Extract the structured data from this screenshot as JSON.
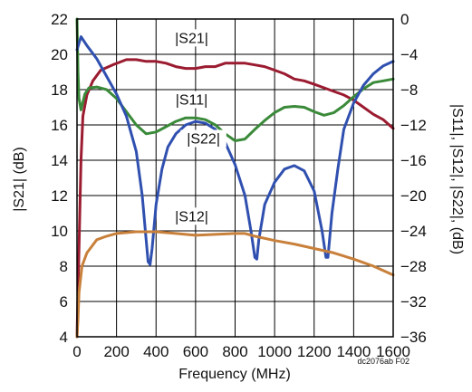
{
  "chart_data": {
    "type": "line",
    "xlabel": "Frequency (MHz)",
    "ylabel_left": "|S21| (dB)",
    "ylabel_right": "|S11|, |S12|, |S22|, (dB)",
    "xlim": [
      0,
      1600
    ],
    "ylim_left": [
      4,
      22
    ],
    "ylim_right": [
      -36,
      0
    ],
    "grid": true,
    "x_ticks": [
      0,
      200,
      400,
      600,
      800,
      1000,
      1200,
      1400,
      1600
    ],
    "y_ticks_left": [
      4,
      6,
      8,
      10,
      12,
      14,
      16,
      18,
      20,
      22
    ],
    "y_ticks_right": [
      -36,
      -32,
      -28,
      -24,
      -20,
      -16,
      -12,
      -8,
      -4,
      0
    ],
    "footnote": "dc2076ab F02",
    "series": [
      {
        "name": "|S21|",
        "axis": "left",
        "color": "#9b1b30",
        "label_at": [
          580,
          20.7
        ],
        "points": [
          [
            0,
            4
          ],
          [
            10,
            9
          ],
          [
            20,
            14
          ],
          [
            30,
            16.5
          ],
          [
            50,
            17.7
          ],
          [
            80,
            18.5
          ],
          [
            120,
            19.1
          ],
          [
            180,
            19.4
          ],
          [
            250,
            19.7
          ],
          [
            300,
            19.7
          ],
          [
            350,
            19.6
          ],
          [
            400,
            19.6
          ],
          [
            450,
            19.5
          ],
          [
            500,
            19.3
          ],
          [
            550,
            19.2
          ],
          [
            600,
            19.2
          ],
          [
            650,
            19.3
          ],
          [
            700,
            19.3
          ],
          [
            750,
            19.5
          ],
          [
            800,
            19.5
          ],
          [
            850,
            19.5
          ],
          [
            900,
            19.4
          ],
          [
            950,
            19.3
          ],
          [
            1000,
            19.1
          ],
          [
            1050,
            18.9
          ],
          [
            1100,
            18.6
          ],
          [
            1150,
            18.5
          ],
          [
            1200,
            18.3
          ],
          [
            1250,
            18.1
          ],
          [
            1300,
            17.9
          ],
          [
            1350,
            17.7
          ],
          [
            1400,
            17.4
          ],
          [
            1450,
            17.0
          ],
          [
            1500,
            16.6
          ],
          [
            1550,
            16.3
          ],
          [
            1600,
            15.8
          ]
        ]
      },
      {
        "name": "|S11|",
        "axis": "right",
        "color": "#3a8a3a",
        "label_at": [
          580,
          17.2
        ],
        "points": [
          [
            0,
            0
          ],
          [
            5,
            -6
          ],
          [
            10,
            -9
          ],
          [
            20,
            -10.3
          ],
          [
            40,
            -8.5
          ],
          [
            60,
            -7.8
          ],
          [
            100,
            -7.7
          ],
          [
            150,
            -8
          ],
          [
            200,
            -9
          ],
          [
            250,
            -10.5
          ],
          [
            300,
            -12
          ],
          [
            350,
            -13
          ],
          [
            400,
            -12.8
          ],
          [
            450,
            -12.2
          ],
          [
            500,
            -11.6
          ],
          [
            550,
            -11.2
          ],
          [
            600,
            -11.2
          ],
          [
            650,
            -11.4
          ],
          [
            700,
            -12
          ],
          [
            750,
            -13
          ],
          [
            800,
            -13.8
          ],
          [
            850,
            -13.6
          ],
          [
            900,
            -12.5
          ],
          [
            950,
            -11.5
          ],
          [
            1000,
            -10.6
          ],
          [
            1050,
            -10
          ],
          [
            1100,
            -9.9
          ],
          [
            1150,
            -10
          ],
          [
            1200,
            -10.5
          ],
          [
            1250,
            -10.9
          ],
          [
            1300,
            -10.6
          ],
          [
            1350,
            -9.8
          ],
          [
            1400,
            -8.8
          ],
          [
            1450,
            -7.9
          ],
          [
            1500,
            -7.2
          ],
          [
            1550,
            -7
          ],
          [
            1600,
            -6.8
          ]
        ]
      },
      {
        "name": "|S22|",
        "axis": "right",
        "color": "#3050b0",
        "label_at": [
          640,
          15.0
        ],
        "points": [
          [
            0,
            -3.5
          ],
          [
            20,
            -2
          ],
          [
            50,
            -3
          ],
          [
            100,
            -4.5
          ],
          [
            150,
            -6.5
          ],
          [
            200,
            -8.5
          ],
          [
            250,
            -11
          ],
          [
            300,
            -15
          ],
          [
            330,
            -20
          ],
          [
            350,
            -25
          ],
          [
            360,
            -27.5
          ],
          [
            370,
            -27.8
          ],
          [
            380,
            -26
          ],
          [
            400,
            -21
          ],
          [
            430,
            -17
          ],
          [
            460,
            -14.5
          ],
          [
            500,
            -13
          ],
          [
            550,
            -12
          ],
          [
            600,
            -11.6
          ],
          [
            650,
            -11.8
          ],
          [
            700,
            -12.5
          ],
          [
            750,
            -14
          ],
          [
            800,
            -16.5
          ],
          [
            850,
            -20
          ],
          [
            880,
            -24
          ],
          [
            900,
            -27
          ],
          [
            910,
            -27.2
          ],
          [
            920,
            -25
          ],
          [
            950,
            -21
          ],
          [
            1000,
            -18.5
          ],
          [
            1050,
            -17
          ],
          [
            1100,
            -16.6
          ],
          [
            1150,
            -17.2
          ],
          [
            1200,
            -19.5
          ],
          [
            1240,
            -24
          ],
          [
            1260,
            -27
          ],
          [
            1270,
            -27
          ],
          [
            1290,
            -22
          ],
          [
            1320,
            -17
          ],
          [
            1350,
            -12.5
          ],
          [
            1400,
            -9.5
          ],
          [
            1450,
            -7.5
          ],
          [
            1500,
            -6.2
          ],
          [
            1550,
            -5.3
          ],
          [
            1600,
            -4.8
          ]
        ]
      },
      {
        "name": "|S12|",
        "axis": "right",
        "color": "#c8803a",
        "label_at": [
          580,
          10.6
        ],
        "points": [
          [
            0,
            -36
          ],
          [
            5,
            -34
          ],
          [
            10,
            -31
          ],
          [
            25,
            -28
          ],
          [
            50,
            -26.5
          ],
          [
            100,
            -25
          ],
          [
            150,
            -24.6
          ],
          [
            200,
            -24.3
          ],
          [
            300,
            -24.1
          ],
          [
            400,
            -24.1
          ],
          [
            500,
            -24.3
          ],
          [
            600,
            -24.5
          ],
          [
            700,
            -24.4
          ],
          [
            800,
            -24.3
          ],
          [
            850,
            -24.3
          ],
          [
            900,
            -24.6
          ],
          [
            1000,
            -25.1
          ],
          [
            1100,
            -25.5
          ],
          [
            1200,
            -26
          ],
          [
            1300,
            -26.5
          ],
          [
            1400,
            -27.2
          ],
          [
            1500,
            -28
          ],
          [
            1600,
            -29
          ]
        ]
      }
    ]
  }
}
